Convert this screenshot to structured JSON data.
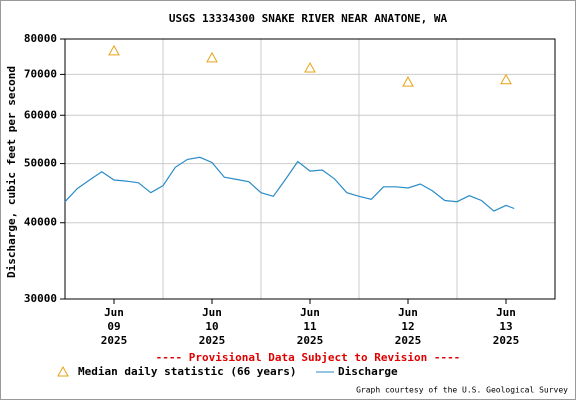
{
  "chart_data": {
    "type": "line",
    "title": "USGS 13334300 SNAKE RIVER NEAR ANATONE, WA",
    "y_label": "Discharge, cubic feet per second",
    "annotation": "---- Provisional Data Subject to Revision ----",
    "credit": "Graph courtesy of the U.S. Geological Survey",
    "log_y": true,
    "grid": true,
    "ylim": [
      30000,
      80000
    ],
    "yticks": [
      30000,
      40000,
      50000,
      60000,
      70000,
      80000
    ],
    "xlim": [
      "2025-06-09T00:00",
      "2025-06-14T00:00"
    ],
    "xticks": [
      {
        "value": "2025-06-09T12:00",
        "label": [
          "Jun",
          "09",
          "2025"
        ]
      },
      {
        "value": "2025-06-10T12:00",
        "label": [
          "Jun",
          "10",
          "2025"
        ]
      },
      {
        "value": "2025-06-11T12:00",
        "label": [
          "Jun",
          "11",
          "2025"
        ]
      },
      {
        "value": "2025-06-12T12:00",
        "label": [
          "Jun",
          "12",
          "2025"
        ]
      },
      {
        "value": "2025-06-13T12:00",
        "label": [
          "Jun",
          "13",
          "2025"
        ]
      }
    ],
    "xgrid": [
      "2025-06-10T00:00",
      "2025-06-11T00:00",
      "2025-06-12T00:00",
      "2025-06-13T00:00"
    ],
    "series": [
      {
        "name": "Median daily statistic (66 years)",
        "marker": "triangle",
        "color": "#e8a317",
        "x": [
          "2025-06-09T12:00",
          "2025-06-10T12:00",
          "2025-06-11T12:00",
          "2025-06-12T12:00",
          "2025-06-13T12:00"
        ],
        "values": [
          76500,
          74500,
          71700,
          68000,
          68600
        ]
      },
      {
        "name": "Discharge",
        "marker": "line",
        "color": "#2a8cc8",
        "x": [
          "2025-06-09T00:00",
          "2025-06-09T03:00",
          "2025-06-09T06:00",
          "2025-06-09T09:00",
          "2025-06-09T12:00",
          "2025-06-09T15:00",
          "2025-06-09T18:00",
          "2025-06-09T21:00",
          "2025-06-10T00:00",
          "2025-06-10T03:00",
          "2025-06-10T06:00",
          "2025-06-10T09:00",
          "2025-06-10T12:00",
          "2025-06-10T15:00",
          "2025-06-10T18:00",
          "2025-06-10T21:00",
          "2025-06-11T00:00",
          "2025-06-11T03:00",
          "2025-06-11T06:00",
          "2025-06-11T09:00",
          "2025-06-11T12:00",
          "2025-06-11T15:00",
          "2025-06-11T18:00",
          "2025-06-11T21:00",
          "2025-06-12T00:00",
          "2025-06-12T03:00",
          "2025-06-12T06:00",
          "2025-06-12T09:00",
          "2025-06-12T12:00",
          "2025-06-12T15:00",
          "2025-06-12T18:00",
          "2025-06-12T21:00",
          "2025-06-13T00:00",
          "2025-06-13T03:00",
          "2025-06-13T06:00",
          "2025-06-13T09:00",
          "2025-06-13T12:00",
          "2025-06-13T14:00"
        ],
        "values": [
          43300,
          45500,
          47000,
          48500,
          47000,
          46800,
          46500,
          44800,
          46000,
          49300,
          50800,
          51200,
          50200,
          47500,
          47100,
          46700,
          44800,
          44200,
          47100,
          50400,
          48600,
          48800,
          47200,
          44800,
          44200,
          43700,
          45800,
          45800,
          45600,
          46300,
          45100,
          43500,
          43300,
          44300,
          43500,
          41800,
          42700,
          42200
        ]
      }
    ]
  }
}
